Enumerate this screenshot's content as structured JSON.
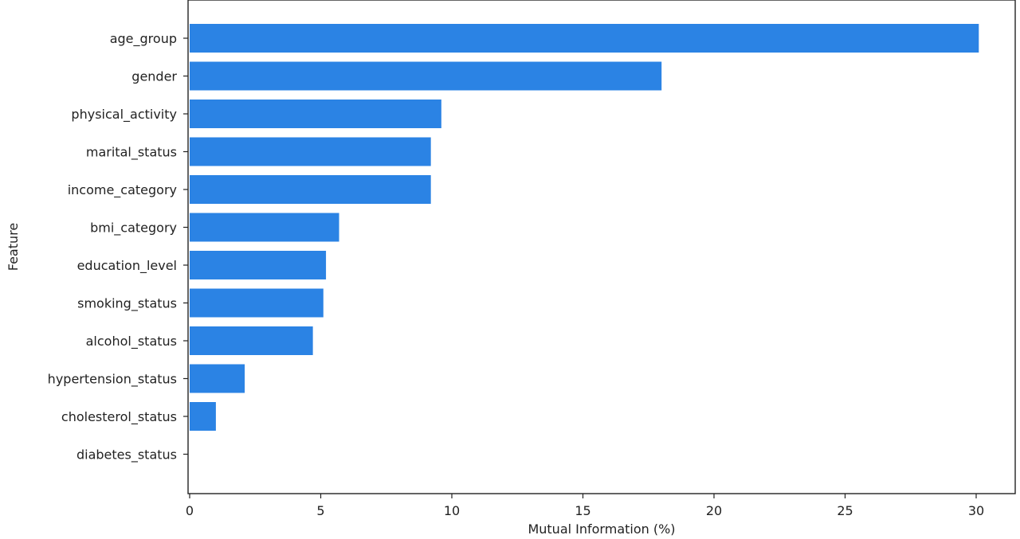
{
  "chart_data": {
    "type": "bar",
    "orientation": "horizontal",
    "title": "",
    "xlabel": "Mutual Information (%)",
    "ylabel": "Feature",
    "xlim": [
      0,
      31.5
    ],
    "xticks": [
      0,
      5,
      10,
      15,
      20,
      25,
      30
    ],
    "grid": false,
    "bar_color": "#2b83e4",
    "categories": [
      "age_group",
      "gender",
      "physical_activity",
      "marital_status",
      "income_category",
      "bmi_category",
      "education_level",
      "smoking_status",
      "alcohol_status",
      "hypertension_status",
      "cholesterol_status",
      "diabetes_status"
    ],
    "values": [
      30.1,
      18.0,
      9.6,
      9.2,
      9.2,
      5.7,
      5.2,
      5.1,
      4.7,
      2.1,
      1.0,
      0.0
    ]
  }
}
